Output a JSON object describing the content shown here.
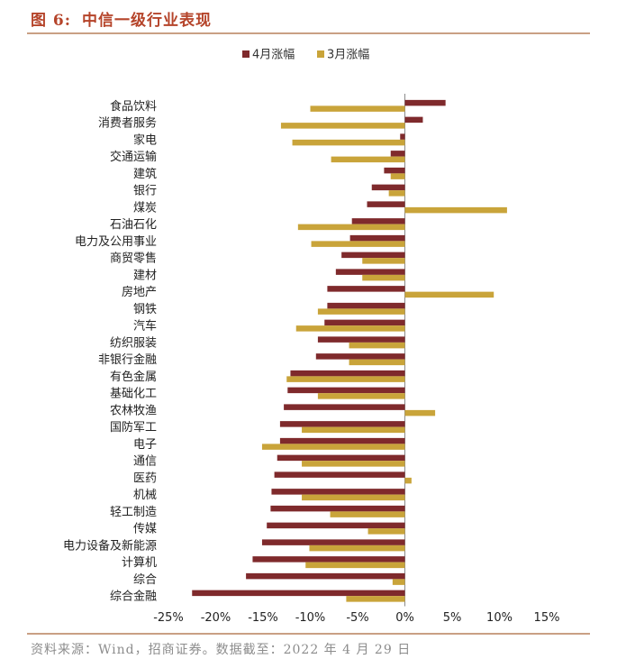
{
  "header": {
    "figure_no": "图 6:",
    "title": "中信一级行业表现"
  },
  "source": "资料来源：Wind，招商证券。数据截至：2022 年 4 月 29 日",
  "colors": {
    "april": "#7f2a2c",
    "march": "#c9a43a",
    "title": "#b5442a",
    "rule": "#c9a084"
  },
  "chart_data": {
    "type": "bar",
    "orientation": "horizontal",
    "title": "",
    "xlabel": "",
    "ylabel": "",
    "xlim": [
      -25,
      15
    ],
    "x_ticks": [
      -25,
      -20,
      -15,
      -10,
      -5,
      0,
      5,
      10,
      15
    ],
    "x_tick_labels": [
      "-25%",
      "-20%",
      "-15%",
      "-10%",
      "-5%",
      "0%",
      "5%",
      "10%",
      "15%"
    ],
    "legend_position": "top-center",
    "grid": false,
    "categories": [
      "食品饮料",
      "消费者服务",
      "家电",
      "交通运输",
      "建筑",
      "银行",
      "煤炭",
      "石油石化",
      "电力及公用事业",
      "商贸零售",
      "建材",
      "房地产",
      "钢铁",
      "汽车",
      "纺织服装",
      "非银行金融",
      "有色金属",
      "基础化工",
      "农林牧渔",
      "国防军工",
      "电子",
      "通信",
      "医药",
      "机械",
      "轻工制造",
      "传媒",
      "电力设备及新能源",
      "计算机",
      "综合",
      "综合金融"
    ],
    "series": [
      {
        "name": "4月涨幅",
        "color": "#7f2a2c",
        "values": [
          4.3,
          1.9,
          -0.5,
          -1.5,
          -2.2,
          -3.5,
          -4.0,
          -5.6,
          -5.8,
          -6.7,
          -7.3,
          -8.2,
          -8.2,
          -8.5,
          -9.2,
          -9.4,
          -12.1,
          -12.4,
          -12.8,
          -13.2,
          -13.2,
          -13.5,
          -13.8,
          -14.1,
          -14.2,
          -14.6,
          -15.1,
          -16.1,
          -16.8,
          -22.5
        ]
      },
      {
        "name": "3月涨幅",
        "color": "#c9a43a",
        "values": [
          -10.0,
          -13.1,
          -11.9,
          -7.8,
          -1.5,
          -1.7,
          10.8,
          -11.3,
          -9.9,
          -4.5,
          -4.5,
          9.4,
          -9.2,
          -11.5,
          -5.9,
          -5.9,
          -12.5,
          -9.2,
          3.2,
          -10.9,
          -15.1,
          -10.9,
          0.7,
          -10.9,
          -7.9,
          -3.9,
          -10.1,
          -10.5,
          -1.3,
          -6.2
        ]
      }
    ]
  }
}
